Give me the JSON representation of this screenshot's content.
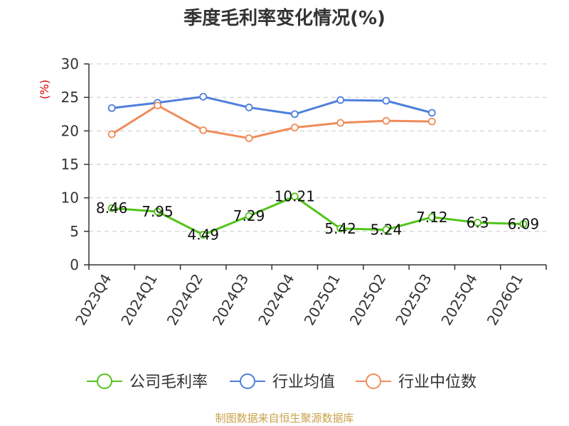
{
  "chart_data": {
    "type": "line",
    "title": "季度毛利率变化情况(%)",
    "ylabel": "(%)",
    "xlabel": "",
    "ylim": [
      0,
      30
    ],
    "yticks": [
      0,
      5,
      10,
      15,
      20,
      25,
      30
    ],
    "grid": true,
    "legend_position": "bottom",
    "categories": [
      "2023Q4",
      "2024Q1",
      "2024Q2",
      "2024Q3",
      "2024Q4",
      "2025Q1",
      "2025Q2",
      "2025Q3",
      "2025Q4",
      "2026Q1"
    ],
    "series": [
      {
        "name": "公司毛利率",
        "color": "#52c41a",
        "values": [
          8.46,
          7.95,
          4.49,
          7.29,
          10.21,
          5.42,
          5.24,
          7.12,
          6.3,
          6.09
        ],
        "labels": [
          "8.46",
          "7.95",
          "4.49",
          "7.29",
          "10.21",
          "5.42",
          "5.24",
          "7.12",
          "6.3",
          "6.09"
        ]
      },
      {
        "name": "行业均值",
        "color": "#4e7fdc",
        "values": [
          23.4,
          24.2,
          25.1,
          23.5,
          22.5,
          24.6,
          24.5,
          22.7,
          null,
          null
        ]
      },
      {
        "name": "行业中位数",
        "color": "#f08c5a",
        "values": [
          19.5,
          23.8,
          20.1,
          18.9,
          20.5,
          21.2,
          21.5,
          21.4,
          null,
          null
        ]
      }
    ]
  },
  "source": "制图数据来自恒生聚源数据库"
}
